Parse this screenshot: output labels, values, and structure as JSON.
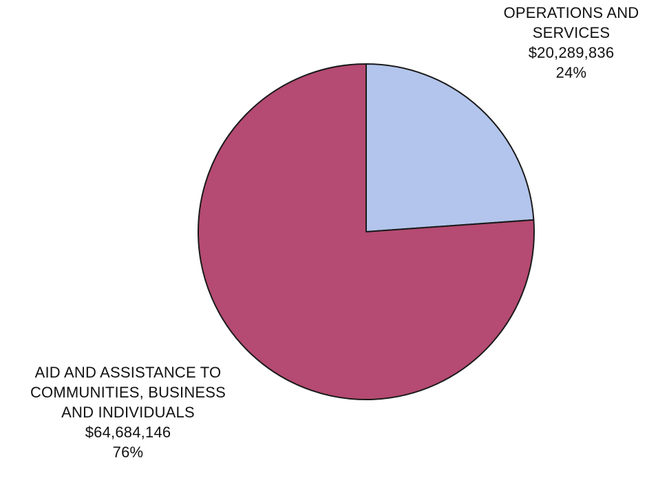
{
  "chart_data": {
    "type": "pie",
    "title": "",
    "slices": [
      {
        "label_lines": [
          "OPERATIONS AND",
          "SERVICES"
        ],
        "amount": "$20,289,836",
        "percent_label": "24%",
        "value": 20289836,
        "color": "#b3c5ec"
      },
      {
        "label_lines": [
          "AID AND ASSISTANCE TO",
          "COMMUNITIES, BUSINESS",
          "AND INDIVIDUALS"
        ],
        "amount": "$64,684,146",
        "percent_label": "76%",
        "value": 64684146,
        "color": "#b54a72"
      }
    ],
    "legend": "none",
    "start_angle": "12 o'clock",
    "direction": "clockwise"
  }
}
